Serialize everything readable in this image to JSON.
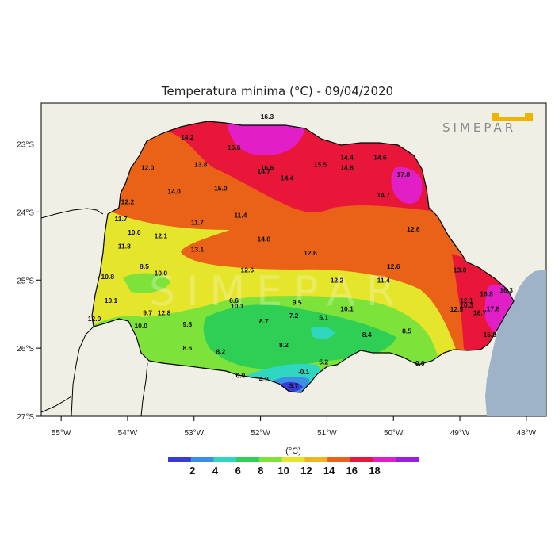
{
  "title": "Temperatura mínima (°C) - 09/04/2020",
  "logo": {
    "text": "SIMEPAR",
    "color": "#f0b400"
  },
  "watermark": {
    "text": "SIMEPAR"
  },
  "map": {
    "lon_range": [
      -55.3,
      -47.7
    ],
    "lat_range": [
      -27.0,
      -22.4
    ],
    "lon_ticks": [
      {
        "value": -55,
        "label": "55°W"
      },
      {
        "value": -54,
        "label": "54°W"
      },
      {
        "value": -53,
        "label": "53°W"
      },
      {
        "value": -52,
        "label": "52°W"
      },
      {
        "value": -51,
        "label": "51°W"
      },
      {
        "value": -50,
        "label": "50°W"
      },
      {
        "value": -49,
        "label": "49°W"
      },
      {
        "value": -48,
        "label": "48°W"
      }
    ],
    "lat_ticks": [
      {
        "value": -23,
        "label": "23°S"
      },
      {
        "value": -24,
        "label": "24°S"
      },
      {
        "value": -25,
        "label": "25°S"
      },
      {
        "value": -26,
        "label": "26°S"
      },
      {
        "value": -27,
        "label": "27°S"
      }
    ],
    "colors": {
      "land": "#f0efe6",
      "ocean": "#9eb3c7"
    }
  },
  "stations": [
    {
      "lon": -51.9,
      "lat": -22.6,
      "value": "16.3"
    },
    {
      "lon": -53.1,
      "lat": -22.9,
      "value": "14.2"
    },
    {
      "lon": -52.4,
      "lat": -23.05,
      "value": "16.6"
    },
    {
      "lon": -52.9,
      "lat": -23.3,
      "value": "13.8"
    },
    {
      "lon": -53.7,
      "lat": -23.35,
      "value": "12.0"
    },
    {
      "lon": -51.9,
      "lat": -23.35,
      "value": "16.6"
    },
    {
      "lon": -51.95,
      "lat": -23.4,
      "value": "14.7"
    },
    {
      "lon": -51.1,
      "lat": -23.3,
      "value": "15.5"
    },
    {
      "lon": -50.7,
      "lat": -23.2,
      "value": "14.4"
    },
    {
      "lon": -50.7,
      "lat": -23.35,
      "value": "14.8"
    },
    {
      "lon": -50.2,
      "lat": -23.2,
      "value": "14.6"
    },
    {
      "lon": -51.6,
      "lat": -23.5,
      "value": "14.4"
    },
    {
      "lon": -49.85,
      "lat": -23.45,
      "value": "17.8"
    },
    {
      "lon": -53.3,
      "lat": -23.7,
      "value": "14.0"
    },
    {
      "lon": -52.6,
      "lat": -23.65,
      "value": "15.0"
    },
    {
      "lon": -50.15,
      "lat": -23.75,
      "value": "14.7"
    },
    {
      "lon": -54.0,
      "lat": -23.85,
      "value": "12.2"
    },
    {
      "lon": -52.3,
      "lat": -24.05,
      "value": "11.4"
    },
    {
      "lon": -54.1,
      "lat": -24.1,
      "value": "11.7"
    },
    {
      "lon": -52.95,
      "lat": -24.15,
      "value": "11.7"
    },
    {
      "lon": -53.9,
      "lat": -24.3,
      "value": "10.0"
    },
    {
      "lon": -53.5,
      "lat": -24.35,
      "value": "12.1"
    },
    {
      "lon": -49.7,
      "lat": -24.25,
      "value": "12.6"
    },
    {
      "lon": -51.95,
      "lat": -24.4,
      "value": "14.8"
    },
    {
      "lon": -54.05,
      "lat": -24.5,
      "value": "11.8"
    },
    {
      "lon": -52.95,
      "lat": -24.55,
      "value": "13.1"
    },
    {
      "lon": -51.25,
      "lat": -24.6,
      "value": "12.6"
    },
    {
      "lon": -53.75,
      "lat": -24.8,
      "value": "8.5"
    },
    {
      "lon": -53.5,
      "lat": -24.9,
      "value": "10.0"
    },
    {
      "lon": -52.2,
      "lat": -24.85,
      "value": "12.6"
    },
    {
      "lon": -50.0,
      "lat": -24.8,
      "value": "12.6"
    },
    {
      "lon": -49.0,
      "lat": -24.85,
      "value": "13.0"
    },
    {
      "lon": -54.3,
      "lat": -24.95,
      "value": "10.8"
    },
    {
      "lon": -50.85,
      "lat": -25.0,
      "value": "12.2"
    },
    {
      "lon": -50.15,
      "lat": -25.0,
      "value": "11.4"
    },
    {
      "lon": -54.25,
      "lat": -25.3,
      "value": "10.1"
    },
    {
      "lon": -52.4,
      "lat": -25.3,
      "value": "6.6"
    },
    {
      "lon": -51.45,
      "lat": -25.33,
      "value": "9.5"
    },
    {
      "lon": -48.9,
      "lat": -25.3,
      "value": "12.1"
    },
    {
      "lon": -48.9,
      "lat": -25.37,
      "value": "10.3"
    },
    {
      "lon": -48.6,
      "lat": -25.2,
      "value": "16.8"
    },
    {
      "lon": -48.3,
      "lat": -25.15,
      "value": "16.3"
    },
    {
      "lon": -52.35,
      "lat": -25.38,
      "value": "10.1"
    },
    {
      "lon": -50.7,
      "lat": -25.42,
      "value": "10.1"
    },
    {
      "lon": -49.05,
      "lat": -25.43,
      "value": "12.5"
    },
    {
      "lon": -48.5,
      "lat": -25.42,
      "value": "17.8"
    },
    {
      "lon": -48.7,
      "lat": -25.48,
      "value": "16.7"
    },
    {
      "lon": -53.7,
      "lat": -25.48,
      "value": "9.7"
    },
    {
      "lon": -53.45,
      "lat": -25.48,
      "value": "12.8"
    },
    {
      "lon": -51.5,
      "lat": -25.52,
      "value": "7.2"
    },
    {
      "lon": -51.05,
      "lat": -25.55,
      "value": "5.1"
    },
    {
      "lon": -54.5,
      "lat": -25.57,
      "value": "12.0"
    },
    {
      "lon": -51.95,
      "lat": -25.6,
      "value": "8.7"
    },
    {
      "lon": -53.1,
      "lat": -25.65,
      "value": "9.8"
    },
    {
      "lon": -53.8,
      "lat": -25.67,
      "value": "10.0"
    },
    {
      "lon": -50.4,
      "lat": -25.8,
      "value": "8.4"
    },
    {
      "lon": -49.8,
      "lat": -25.75,
      "value": "8.5"
    },
    {
      "lon": -48.55,
      "lat": -25.8,
      "value": "15.8"
    },
    {
      "lon": -51.65,
      "lat": -25.95,
      "value": "8.2"
    },
    {
      "lon": -53.1,
      "lat": -26.0,
      "value": "8.6"
    },
    {
      "lon": -52.6,
      "lat": -26.05,
      "value": "8.2"
    },
    {
      "lon": -51.05,
      "lat": -26.2,
      "value": "5.2"
    },
    {
      "lon": -49.6,
      "lat": -26.22,
      "value": "9.0"
    },
    {
      "lon": -51.35,
      "lat": -26.35,
      "value": "-0.1"
    },
    {
      "lon": -52.3,
      "lat": -26.4,
      "value": "6.0"
    },
    {
      "lon": -51.95,
      "lat": -26.45,
      "value": "4.2"
    },
    {
      "lon": -51.5,
      "lat": -26.55,
      "value": "3.7"
    }
  ],
  "colorbar": {
    "unit": "(°C)",
    "colors": [
      "#3a3ad6",
      "#3b8fe4",
      "#2fd6c0",
      "#2fcf55",
      "#7de33a",
      "#e5e52c",
      "#f0b422",
      "#ea6218",
      "#e8173a",
      "#e21ec6",
      "#9a1ee0"
    ],
    "tick_labels": [
      "2",
      "4",
      "6",
      "8",
      "10",
      "12",
      "14",
      "16",
      "18"
    ]
  }
}
